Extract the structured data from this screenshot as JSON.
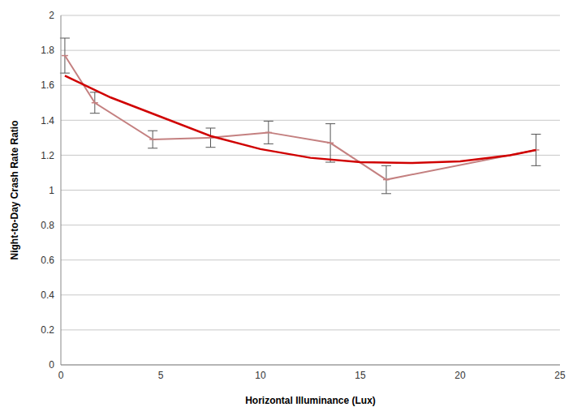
{
  "chart_data": {
    "type": "line",
    "x_label": "Horizontal Illuminance (Lux)",
    "y_label": "Night-to-Day Crash Rate Ratio",
    "xlim": [
      0,
      25
    ],
    "xticks": [
      0,
      5,
      10,
      15,
      20,
      25
    ],
    "ylim": [
      0,
      2
    ],
    "yticks": [
      0,
      0.2,
      0.4,
      0.6,
      0.8,
      1,
      1.2,
      1.4,
      1.6,
      1.8,
      2
    ],
    "grid": true,
    "series": [
      {
        "color": "#c48080",
        "marker": "dash",
        "line_style": "solid",
        "x": [
          0.2,
          1.7,
          4.6,
          7.5,
          10.4,
          13.5,
          16.3,
          23.8
        ],
        "values": [
          1.77,
          1.5,
          1.29,
          1.3,
          1.33,
          1.27,
          1.06,
          1.23
        ],
        "errors": [
          0.1,
          0.06,
          0.05,
          0.055,
          0.065,
          0.11,
          0.08,
          0.09
        ]
      },
      {
        "color": "#d00000",
        "marker": "none",
        "line_style": "solid",
        "x": [
          0.2,
          2.5,
          5,
          7.5,
          10,
          12.5,
          15,
          17.5,
          20,
          22.5,
          23.8
        ],
        "values": [
          1.655,
          1.53,
          1.42,
          1.31,
          1.235,
          1.185,
          1.16,
          1.155,
          1.165,
          1.2,
          1.23
        ]
      }
    ]
  }
}
